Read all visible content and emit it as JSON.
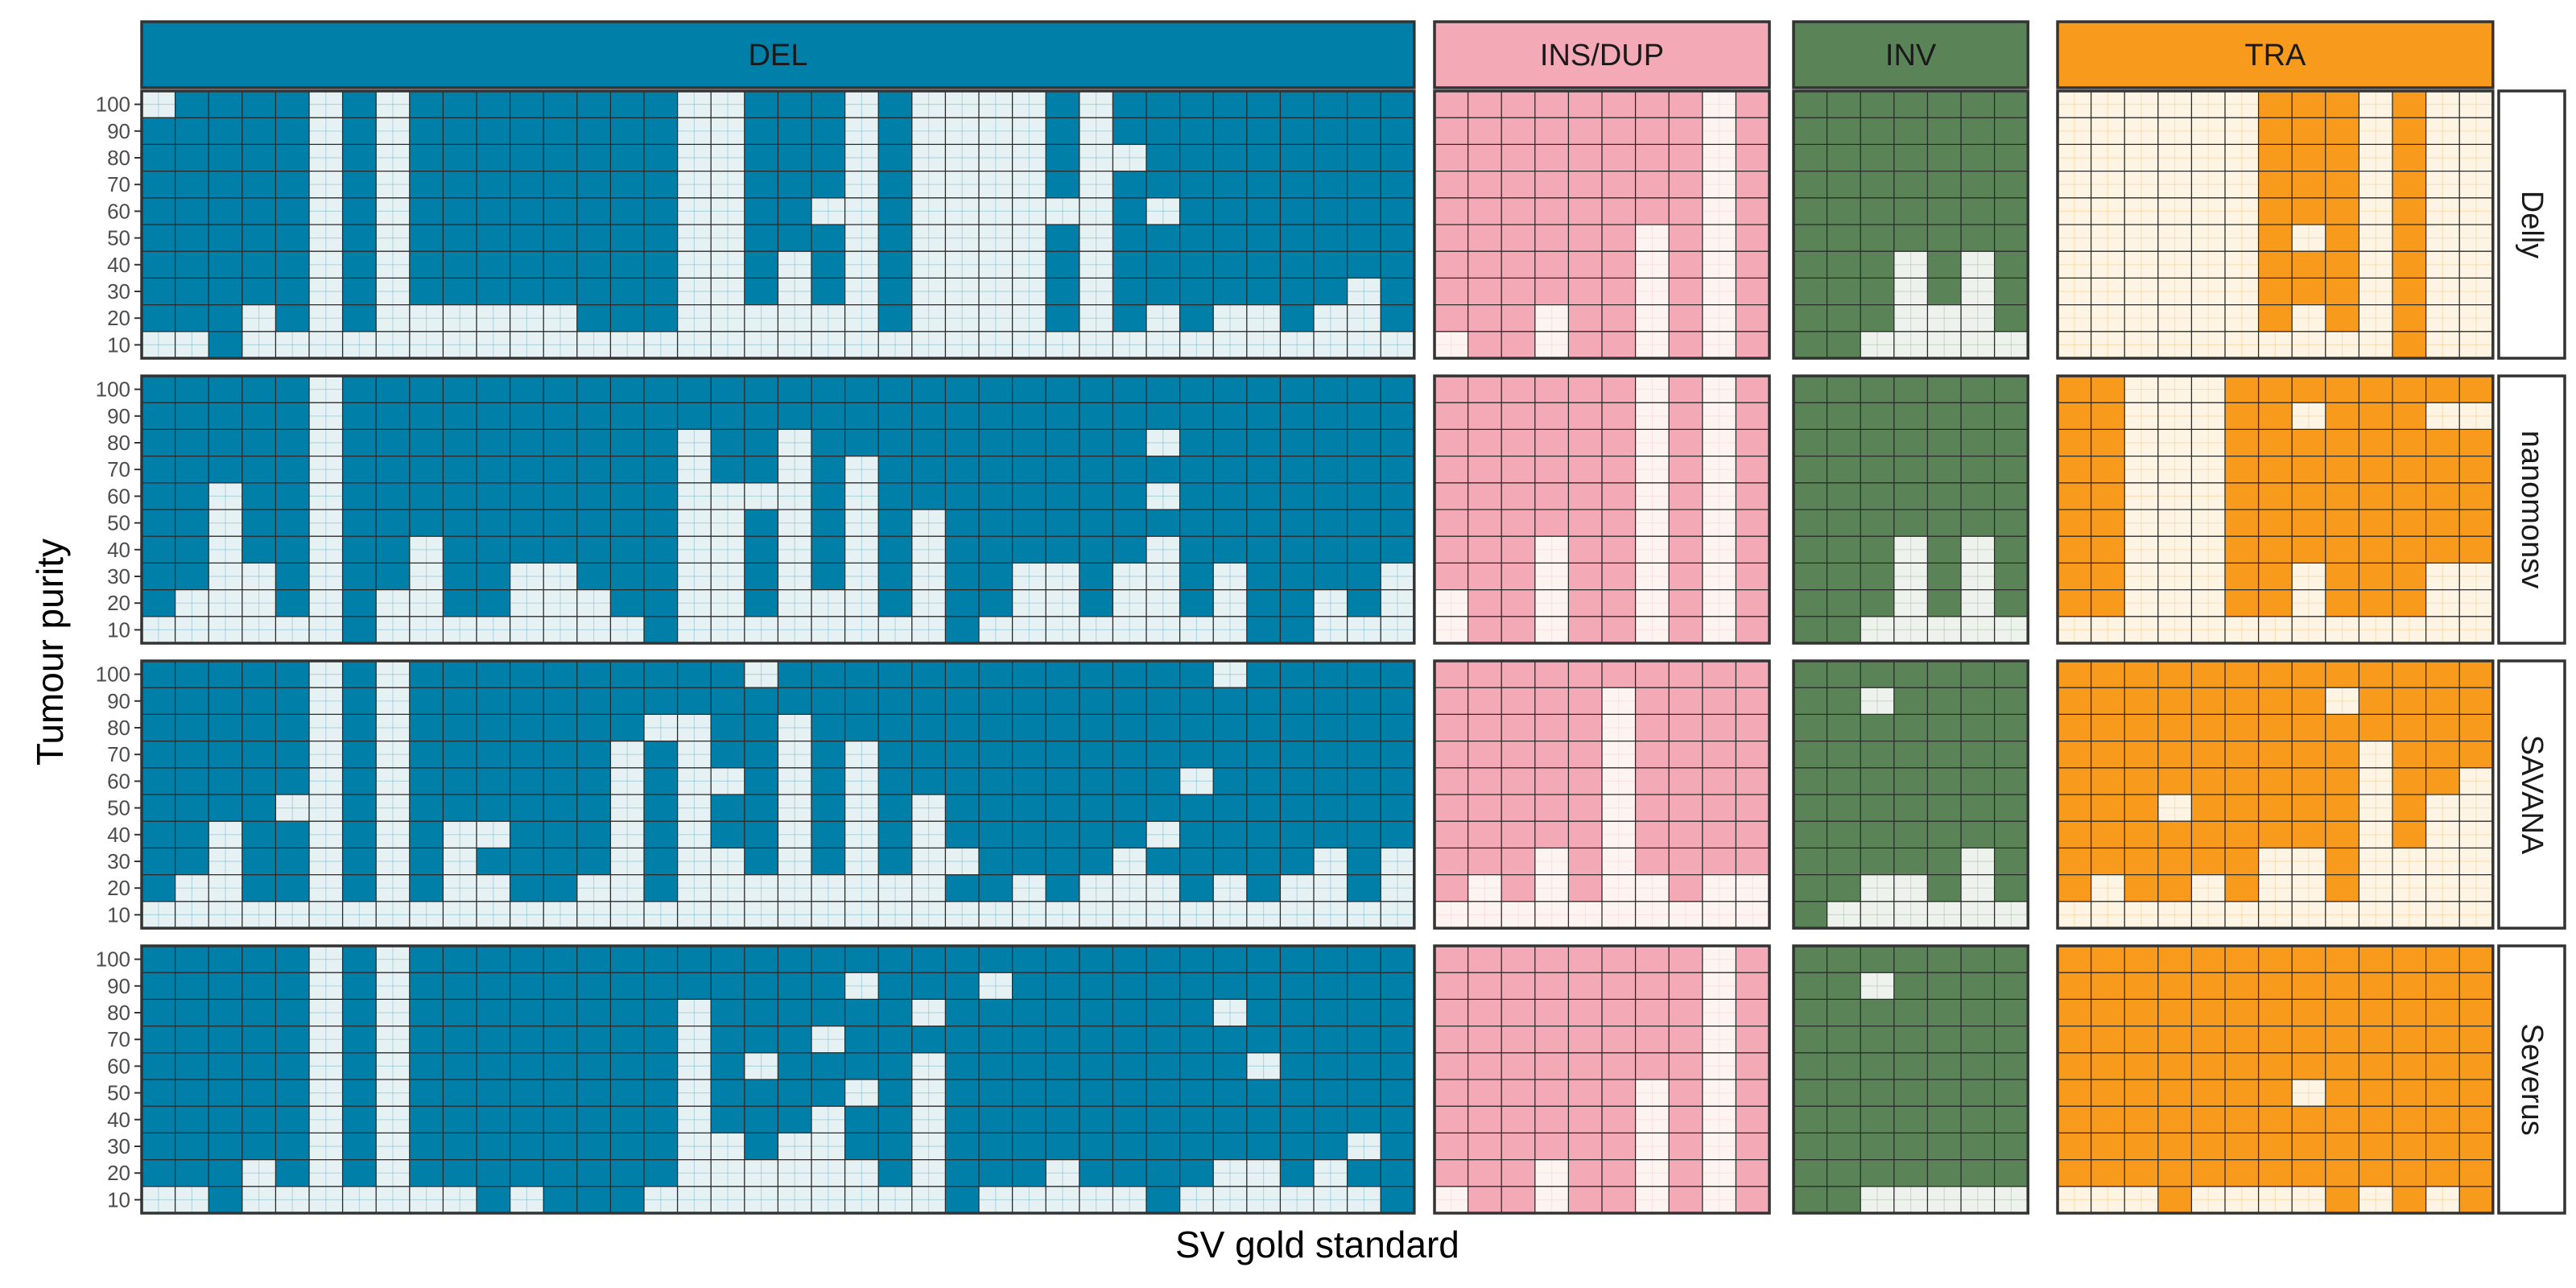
{
  "chart_data": {
    "type": "heatmap",
    "ylabel": "Tumour purity",
    "xlabel": "SV gold standard",
    "purity_levels": [
      10,
      20,
      30,
      40,
      50,
      60,
      70,
      80,
      90,
      100
    ],
    "sv_types": [
      {
        "name": "DEL",
        "n_svs": 38,
        "color": "#0080A8",
        "empty_color": "#E6F1F3"
      },
      {
        "name": "INS/DUP",
        "n_svs": 10,
        "color": "#F4AAB6",
        "empty_color": "#FDF4F2"
      },
      {
        "name": "INV",
        "n_svs": 7,
        "color": "#5A8458",
        "empty_color": "#EEF2EC"
      },
      {
        "name": "TRA",
        "n_svs": 13,
        "color": "#F89B1C",
        "empty_color": "#FDF4E4"
      }
    ],
    "callers": [
      "Delly",
      "nanomonsv",
      "SAVANA",
      "Severus"
    ],
    "min_detected_purity": {
      "Delly": {
        "DEL": [
          20,
          20,
          10,
          30,
          20,
          null,
          20,
          null,
          30,
          30,
          30,
          30,
          30,
          20,
          20,
          20,
          null,
          null,
          30,
          50,
          30,
          null,
          20,
          null,
          null,
          null,
          null,
          20,
          null,
          20,
          30,
          20,
          30,
          30,
          20,
          30,
          40,
          20
        ],
        "INS/DUP": [
          20,
          10,
          10,
          30,
          10,
          10,
          60,
          10,
          null,
          10
        ],
        "INV": [
          10,
          10,
          20,
          50,
          30,
          50,
          20
        ],
        "TRA": [
          null,
          null,
          null,
          null,
          null,
          null,
          20,
          30,
          20,
          null,
          10,
          null,
          null
        ]
      },
      "nanomonsv": {
        "DEL": [
          20,
          30,
          70,
          40,
          20,
          null,
          10,
          30,
          50,
          20,
          20,
          40,
          40,
          30,
          20,
          10,
          90,
          70,
          20,
          90,
          30,
          80,
          20,
          60,
          10,
          20,
          40,
          30,
          20,
          40,
          50,
          20,
          40,
          10,
          10,
          30,
          20,
          40
        ],
        "INS/DUP": [
          30,
          10,
          10,
          50,
          10,
          10,
          null,
          10,
          null,
          10
        ],
        "INV": [
          10,
          10,
          20,
          50,
          20,
          50,
          20
        ],
        "TRA": [
          20,
          20,
          null,
          null,
          null,
          20,
          20,
          40,
          20,
          20,
          20,
          40,
          40
        ]
      },
      "SAVANA": {
        "DEL": [
          20,
          30,
          50,
          20,
          20,
          null,
          20,
          null,
          20,
          50,
          30,
          20,
          20,
          30,
          80,
          20,
          90,
          40,
          30,
          90,
          30,
          80,
          30,
          60,
          20,
          20,
          30,
          20,
          30,
          40,
          30,
          20,
          30,
          20,
          30,
          30,
          20,
          40
        ],
        "INS/DUP": [
          20,
          30,
          20,
          40,
          20,
          100,
          30,
          20,
          30,
          30
        ],
        "INV": [
          10,
          20,
          30,
          30,
          20,
          40,
          20
        ],
        "TRA": [
          20,
          30,
          20,
          20,
          30,
          20,
          40,
          30,
          20,
          80,
          40,
          60,
          70
        ]
      },
      "Severus": {
        "DEL": [
          20,
          20,
          10,
          30,
          20,
          null,
          20,
          null,
          20,
          20,
          10,
          20,
          10,
          10,
          10,
          20,
          90,
          40,
          30,
          40,
          50,
          30,
          20,
          70,
          10,
          20,
          20,
          30,
          20,
          20,
          10,
          20,
          30,
          30,
          20,
          30,
          20,
          10
        ],
        "INS/DUP": [
          20,
          10,
          10,
          30,
          10,
          10,
          60,
          10,
          null,
          10
        ],
        "INV": [
          10,
          10,
          20,
          20,
          20,
          20,
          20
        ],
        "TRA": [
          20,
          20,
          20,
          10,
          20,
          20,
          20,
          20,
          10,
          20,
          10,
          20,
          10
        ]
      }
    },
    "missing_cells": {
      "Delly": {
        "DEL": [
          [
            0,
            100
          ],
          [
            20,
            60
          ],
          [
            24,
            50
          ],
          [
            27,
            60
          ],
          [
            29,
            80
          ],
          [
            30,
            60
          ]
        ],
        "TRA": [
          [
            7,
            50
          ]
        ]
      },
      "nanomonsv": {
        "DEL": [
          [
            16,
            70
          ],
          [
            17,
            30
          ],
          [
            18,
            60
          ],
          [
            27,
            30
          ],
          [
            30,
            60
          ],
          [
            30,
            80
          ]
        ],
        "TRA": [
          [
            7,
            90
          ],
          [
            11,
            90
          ],
          [
            12,
            90
          ]
        ]
      },
      "SAVANA": {
        "DEL": [
          [
            4,
            50
          ],
          [
            10,
            40
          ],
          [
            14,
            60
          ],
          [
            15,
            80
          ],
          [
            16,
            70
          ],
          [
            17,
            60
          ],
          [
            18,
            100
          ],
          [
            19,
            30
          ],
          [
            24,
            30
          ],
          [
            30,
            40
          ],
          [
            31,
            60
          ],
          [
            32,
            100
          ],
          [
            35,
            30
          ]
        ],
        "INV": [
          [
            2,
            90
          ]
        ],
        "TRA": [
          [
            3,
            50
          ],
          [
            7,
            30
          ],
          [
            8,
            90
          ]
        ]
      },
      "Severus": {
        "DEL": [
          [
            18,
            60
          ],
          [
            20,
            70
          ],
          [
            21,
            50
          ],
          [
            21,
            90
          ],
          [
            23,
            80
          ],
          [
            25,
            90
          ],
          [
            32,
            80
          ],
          [
            33,
            60
          ],
          [
            36,
            30
          ]
        ],
        "INV": [
          [
            2,
            90
          ]
        ],
        "TRA": [
          [
            7,
            50
          ]
        ]
      }
    },
    "legend": "none"
  }
}
